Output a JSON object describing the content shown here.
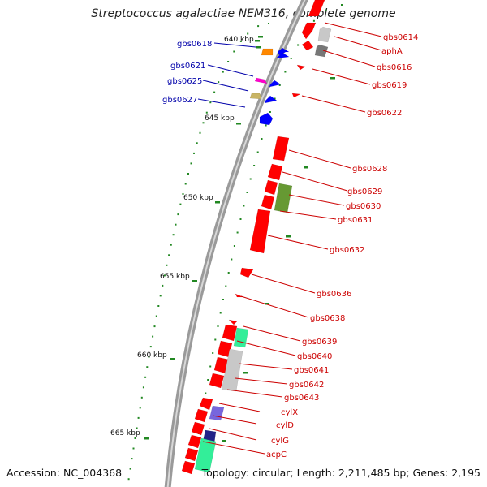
{
  "title": "Streptococcus agalactiae NEM316, complete genome",
  "accession_text": "Accession: NC_004368",
  "summary_text": "Topology: circular; Length: 2,211,485 bp; Genes: 2,195",
  "colors": {
    "backbone": "#8c8c8c",
    "forward_label": "#cc0000",
    "reverse_label": "#0000aa",
    "tick": "#228822",
    "gene_red": "#ff0000",
    "gene_blue": "#0000ff",
    "gene_orange": "#ff8800",
    "gene_magenta": "#ff00cc",
    "gene_khaki": "#c8b464",
    "gene_olive": "#669933",
    "gene_gray": "#c8c8c8",
    "gene_darkgray": "#777777",
    "gene_teal": "#33ee99",
    "gene_purple": "#7766dd",
    "gene_navy": "#222288"
  },
  "scale_labels": [
    {
      "kbp": 640,
      "text": "640 kbp"
    },
    {
      "kbp": 645,
      "text": "645 kbp"
    },
    {
      "kbp": 650,
      "text": "650 kbp"
    },
    {
      "kbp": 655,
      "text": "655 kbp"
    },
    {
      "kbp": 660,
      "text": "660 kbp"
    },
    {
      "kbp": 665,
      "text": "665 kbp"
    }
  ],
  "forward_labels": [
    "gbs0614",
    "aphA",
    "gbs0616",
    "gbs0619",
    "gbs0622",
    "gbs0628",
    "gbs0629",
    "gbs0630",
    "gbs0631",
    "gbs0632",
    "gbs0636",
    "gbs0638",
    "gbs0639",
    "gbs0640",
    "gbs0641",
    "gbs0642",
    "gbs0643",
    "cylX",
    "cylD",
    "cylG",
    "acpC"
  ],
  "reverse_labels": [
    "gbs0618",
    "gbs0621",
    "gbs0625",
    "gbs0627"
  ]
}
